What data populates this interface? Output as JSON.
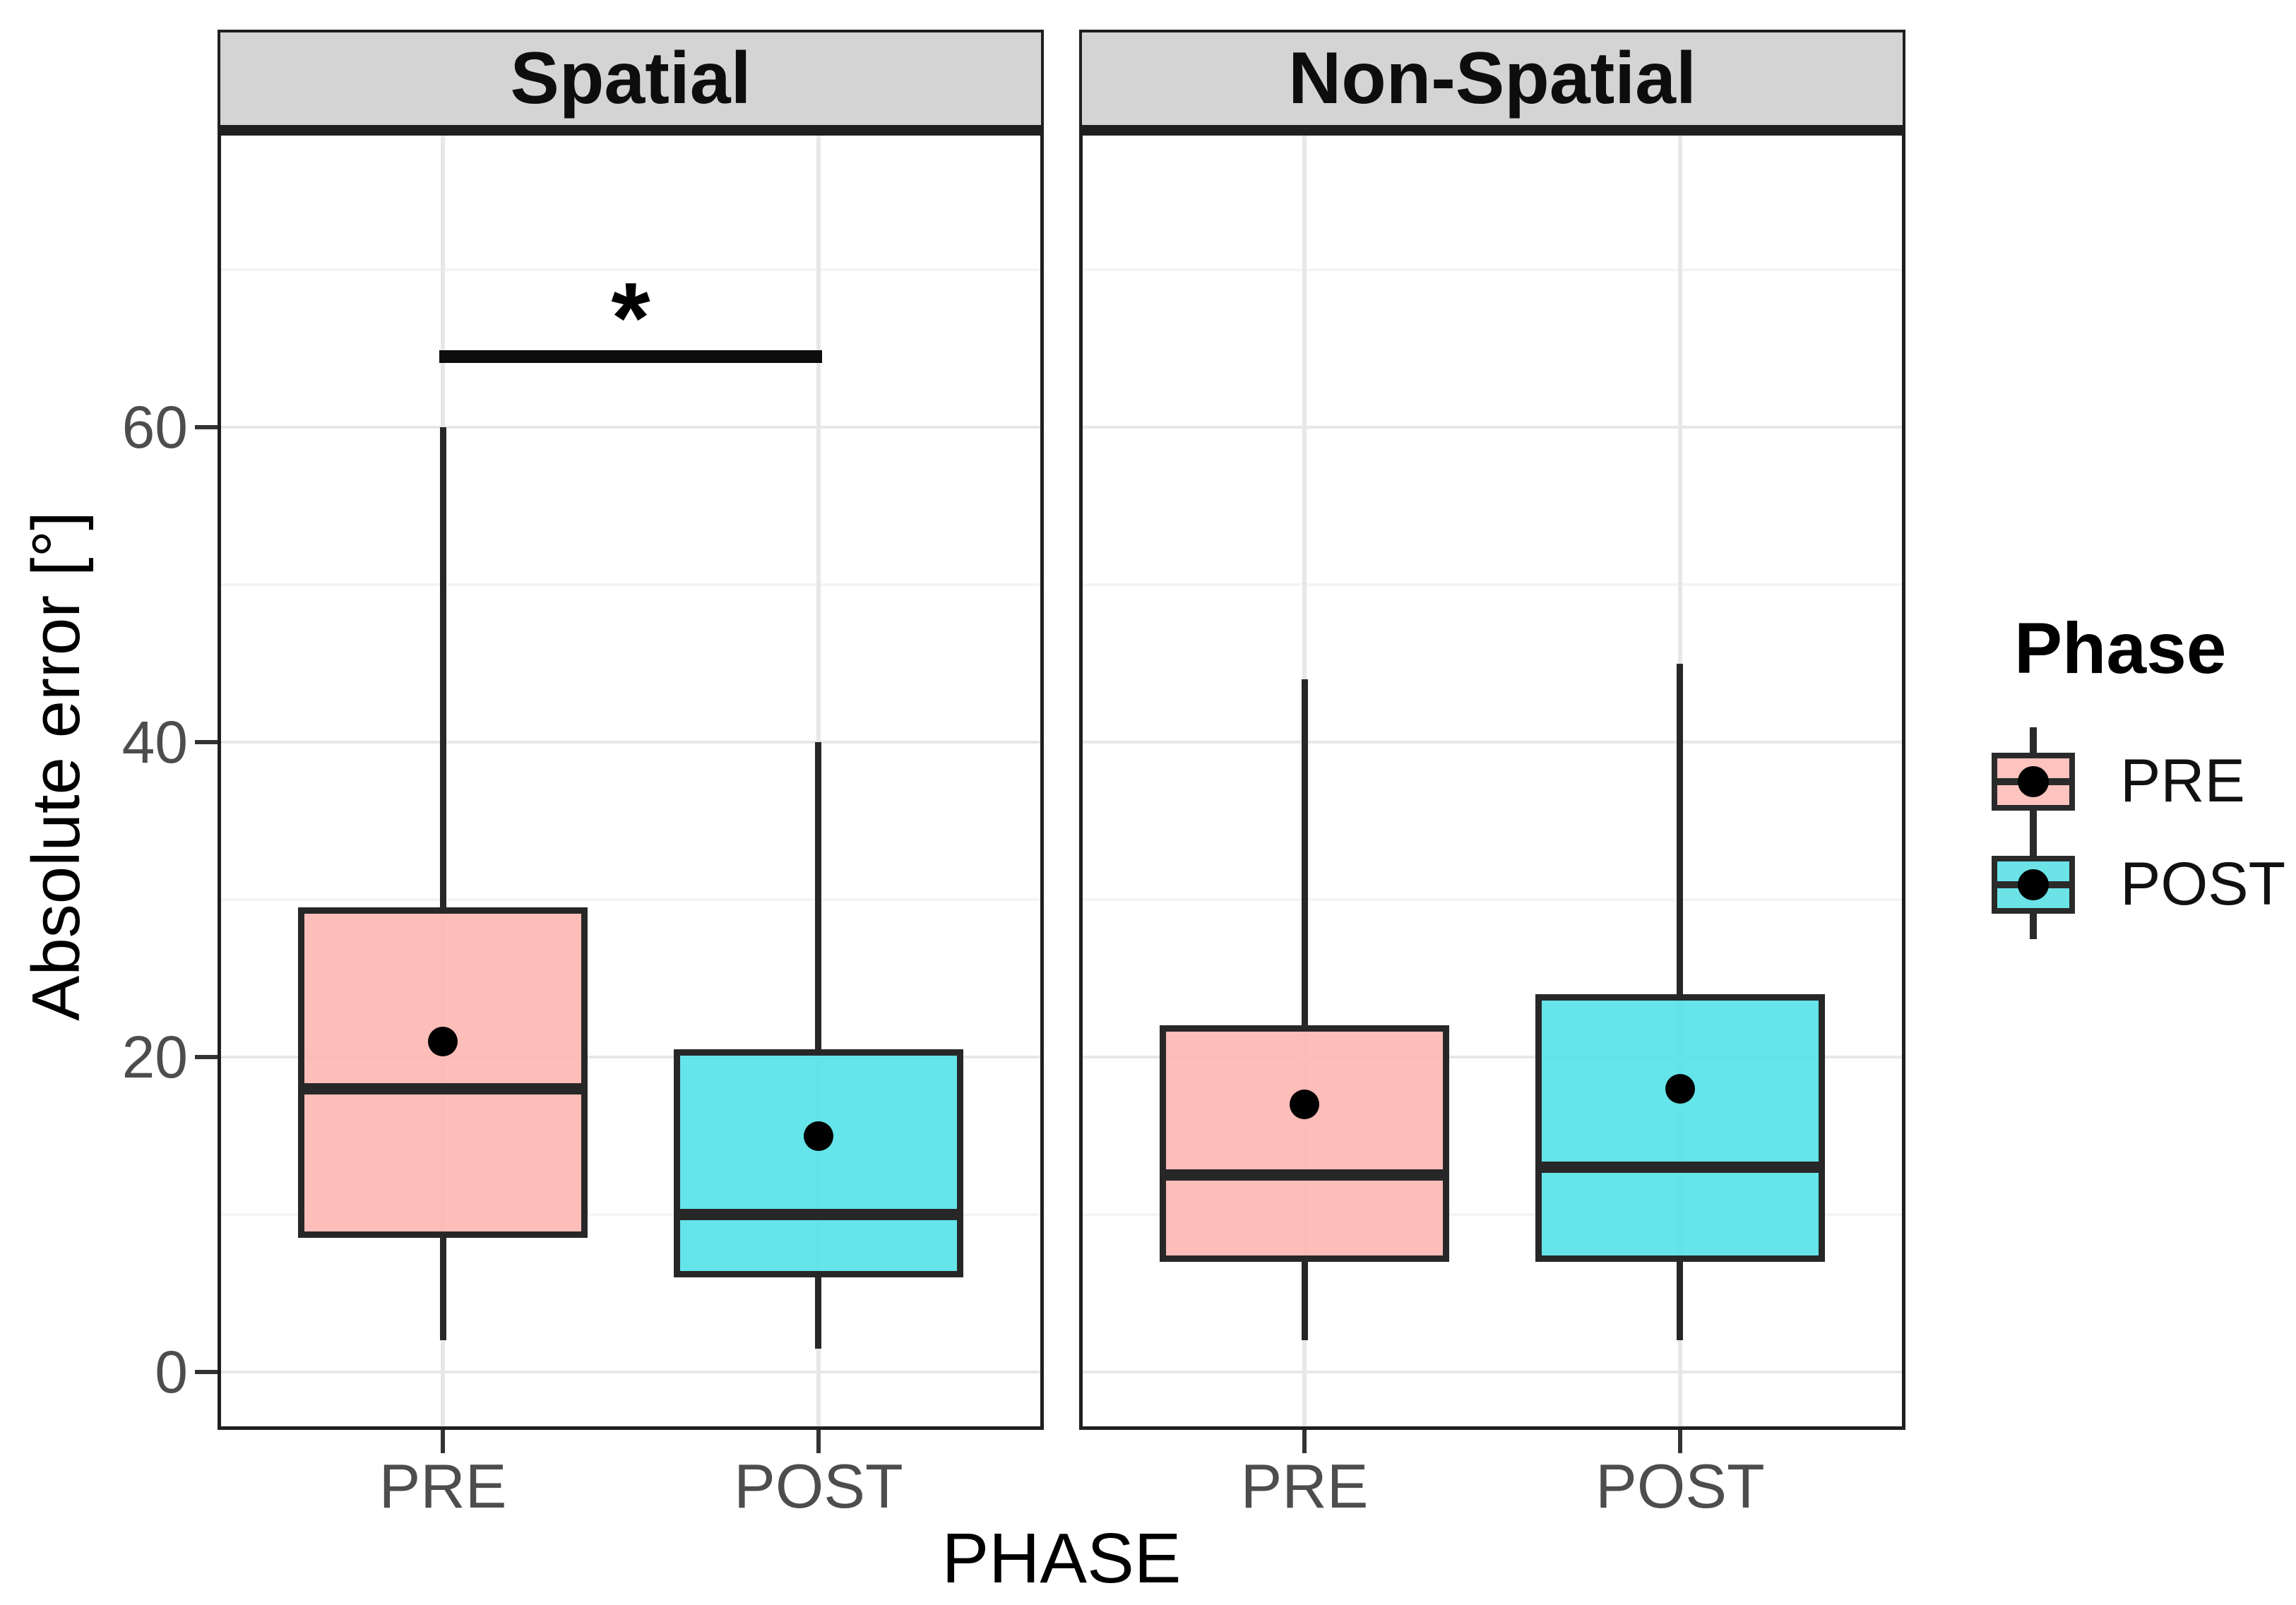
{
  "chart_data": {
    "type": "boxplot",
    "y_axis": {
      "label": "Absolute error [°]",
      "ticks": [
        0,
        20,
        40,
        60
      ],
      "minor_ticks": [
        10,
        30,
        50,
        70
      ],
      "range": [
        -4,
        79
      ],
      "grid": true
    },
    "x_axis": {
      "label": "PHASE",
      "categories": [
        "PRE",
        "POST"
      ]
    },
    "facets": [
      {
        "label": "Spatial",
        "boxes": [
          {
            "group": "PRE",
            "min": 2,
            "q1": 8.5,
            "median": 18,
            "q3": 29.5,
            "max": 60,
            "mean": 21
          },
          {
            "group": "POST",
            "min": 1.5,
            "q1": 6,
            "median": 10,
            "q3": 20.5,
            "max": 40,
            "mean": 15
          }
        ]
      },
      {
        "label": "Non-Spatial",
        "boxes": [
          {
            "group": "PRE",
            "min": 2,
            "q1": 7,
            "median": 12.5,
            "q3": 22,
            "max": 44,
            "mean": 17
          },
          {
            "group": "POST",
            "min": 2,
            "q1": 7,
            "median": 13,
            "q3": 24,
            "max": 45,
            "mean": 18
          }
        ]
      }
    ],
    "annotation": {
      "facet": "Spatial",
      "from": "PRE",
      "to": "POST",
      "bar_y": 64.5,
      "label": "*"
    },
    "legend": {
      "title": "Phase",
      "position": "right",
      "entries": [
        {
          "label": "PRE",
          "fill": "#FDC3BF"
        },
        {
          "label": "POST",
          "fill": "#6BE3E7"
        }
      ]
    },
    "colors": {
      "pre_fill": "rgba(253,183,178,0.92)",
      "post_fill": "rgba(88,226,231,0.92)",
      "box_stroke": "#272727",
      "panel_border": "#1F1F1F",
      "grid_major": "#E7E7E7",
      "grid_minor": "#F4F4F4",
      "strip_bg": "#D4D4D4",
      "tick_label": "#4D4D4D"
    }
  }
}
